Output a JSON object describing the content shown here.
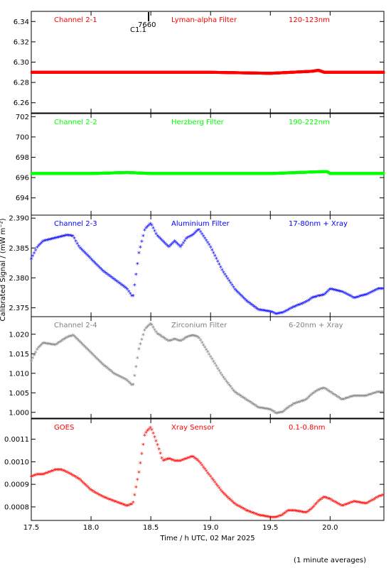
{
  "figure": {
    "xlabel": "Time / h UTC, 02 Mar 2025",
    "ylabel": "Calibrated Signal / (mW m⁻²)",
    "footnote": "(1 minute averages)",
    "event_label": "7660",
    "event_class": "C1.1"
  },
  "chart_data": [
    {
      "type": "scatter",
      "series": [
        {
          "name": "Channel 2-1",
          "color": "#ff0000",
          "points_x": [
            17.5,
            18.0,
            18.5,
            19.0,
            19.5,
            19.85,
            19.9,
            19.95,
            20.0,
            20.45
          ],
          "points_y": [
            6.29,
            6.29,
            6.29,
            6.29,
            6.289,
            6.291,
            6.292,
            6.29,
            6.29,
            6.29
          ]
        }
      ],
      "labels": [
        "Channel 2-1",
        "Lyman-alpha Filter",
        "120-123nm"
      ],
      "x": [
        17.5,
        20.45
      ],
      "ylim": [
        6.25,
        6.35
      ],
      "yticks": [
        6.26,
        6.28,
        6.3,
        6.32,
        6.34
      ],
      "yticklabels": [
        "6.26",
        "6.28",
        "6.30",
        "6.32",
        "6.34"
      ],
      "color": "#ff0000"
    },
    {
      "type": "scatter",
      "series": [
        {
          "name": "Channel 2-2",
          "color": "#00ff00",
          "points_x": [
            17.5,
            18.0,
            18.3,
            18.5,
            19.0,
            19.5,
            19.97,
            20.0,
            20.45
          ],
          "points_y": [
            696.4,
            696.4,
            696.5,
            696.4,
            696.4,
            696.4,
            696.6,
            696.4,
            696.4
          ]
        }
      ],
      "labels": [
        "Channel 2-2",
        "Herzberg Filter",
        "190-222nm"
      ],
      "x": [
        17.5,
        20.45
      ],
      "ylim": [
        692.3,
        702.3
      ],
      "yticks": [
        694,
        696,
        698,
        700,
        702
      ],
      "yticklabels": [
        "694",
        "696",
        "698",
        "700",
        "702"
      ],
      "color": "#00ff00"
    },
    {
      "type": "scatter",
      "series": [
        {
          "name": "Channel 2-3",
          "color": "#0000ff",
          "points_x": [
            17.5,
            17.55,
            17.6,
            17.7,
            17.8,
            17.85,
            17.9,
            18.0,
            18.1,
            18.2,
            18.3,
            18.35,
            18.4,
            18.45,
            18.5,
            18.55,
            18.6,
            18.65,
            18.7,
            18.75,
            18.8,
            18.85,
            18.9,
            19.0,
            19.1,
            19.2,
            19.3,
            19.4,
            19.5,
            19.55,
            19.6,
            19.65,
            19.7,
            19.8,
            19.85,
            19.9,
            19.95,
            20.0,
            20.1,
            20.2,
            20.3,
            20.4,
            20.45
          ],
          "points_y": [
            2.383,
            2.385,
            2.386,
            2.3865,
            2.387,
            2.3868,
            2.385,
            2.383,
            2.381,
            2.3795,
            2.378,
            2.3765,
            2.384,
            2.388,
            2.389,
            2.387,
            2.386,
            2.385,
            2.386,
            2.385,
            2.3865,
            2.387,
            2.388,
            2.385,
            2.381,
            2.378,
            2.376,
            2.3745,
            2.3742,
            2.3738,
            2.374,
            2.3745,
            2.375,
            2.3758,
            2.3765,
            2.3768,
            2.377,
            2.378,
            2.3775,
            2.3765,
            2.377,
            2.378,
            2.378
          ]
        }
      ],
      "labels": [
        "Channel 2-3",
        "Aluminium Filter",
        "17-80nm + Xray"
      ],
      "x": [
        17.5,
        20.45
      ],
      "ylim": [
        2.3735,
        2.3905
      ],
      "yticks": [
        2.375,
        2.38,
        2.385,
        2.39
      ],
      "yticklabels": [
        "2.375",
        "2.380",
        "2.385",
        "2.390"
      ],
      "color": "#0000ff"
    },
    {
      "type": "scatter",
      "series": [
        {
          "name": "Channel 2-4",
          "color": "#808080",
          "points_x": [
            17.5,
            17.55,
            17.6,
            17.7,
            17.8,
            17.85,
            17.9,
            18.0,
            18.1,
            18.2,
            18.3,
            18.35,
            18.4,
            18.45,
            18.5,
            18.55,
            18.6,
            18.65,
            18.7,
            18.75,
            18.8,
            18.85,
            18.9,
            19.0,
            19.1,
            19.2,
            19.3,
            19.4,
            19.5,
            19.55,
            19.6,
            19.65,
            19.7,
            19.8,
            19.85,
            19.9,
            19.95,
            20.0,
            20.1,
            20.2,
            20.3,
            20.4,
            20.45
          ],
          "points_y": [
            1.013,
            1.016,
            1.0175,
            1.017,
            1.019,
            1.0195,
            1.018,
            1.015,
            1.012,
            1.0095,
            1.008,
            1.0065,
            1.016,
            1.021,
            1.0225,
            1.02,
            1.019,
            1.018,
            1.0185,
            1.018,
            1.019,
            1.0195,
            1.019,
            1.014,
            1.009,
            1.005,
            1.003,
            1.001,
            1.0005,
            0.9995,
            0.9998,
            1.001,
            1.002,
            1.003,
            1.0045,
            1.0055,
            1.006,
            1.005,
            1.003,
            1.004,
            1.004,
            1.005,
            1.005
          ]
        }
      ],
      "labels": [
        "Channel 2-4",
        "Zirconium Filter",
        "6-20nm + Xray"
      ],
      "x": [
        17.5,
        20.45
      ],
      "ylim": [
        0.9985,
        1.0245
      ],
      "yticks": [
        1.0,
        1.005,
        1.01,
        1.015,
        1.02
      ],
      "yticklabels": [
        "1.000",
        "1.005",
        "1.010",
        "1.015",
        "1.020"
      ],
      "color": "#808080"
    },
    {
      "type": "scatter",
      "series": [
        {
          "name": "GOES",
          "color": "#ff0000",
          "points_x": [
            17.5,
            17.55,
            17.6,
            17.7,
            17.75,
            17.8,
            17.9,
            18.0,
            18.1,
            18.2,
            18.3,
            18.35,
            18.4,
            18.45,
            18.5,
            18.55,
            18.6,
            18.65,
            18.7,
            18.75,
            18.8,
            18.85,
            18.9,
            19.0,
            19.1,
            19.2,
            19.3,
            19.4,
            19.5,
            19.55,
            19.6,
            19.65,
            19.7,
            19.8,
            19.85,
            19.9,
            19.95,
            20.0,
            20.1,
            20.2,
            20.3,
            20.4,
            20.45
          ],
          "points_y": [
            0.00093,
            0.00094,
            0.00094,
            0.00096,
            0.00096,
            0.00095,
            0.00092,
            0.00087,
            0.00084,
            0.00082,
            0.0008,
            0.00081,
            0.00095,
            0.00112,
            0.00115,
            0.00108,
            0.001,
            0.00101,
            0.001,
            0.001,
            0.00101,
            0.00102,
            0.001,
            0.00093,
            0.00086,
            0.00081,
            0.00078,
            0.00076,
            0.00075,
            0.00075,
            0.00076,
            0.00078,
            0.00078,
            0.00077,
            0.00079,
            0.00082,
            0.00084,
            0.00083,
            0.0008,
            0.00082,
            0.00081,
            0.00084,
            0.00085
          ]
        }
      ],
      "labels": [
        "GOES",
        "Xray Sensor",
        "0.1-0.8nm"
      ],
      "x": [
        17.5,
        20.45
      ],
      "ylim": [
        0.00074,
        0.00119
      ],
      "yticks": [
        0.0008,
        0.0009,
        0.001,
        0.0011
      ],
      "yticklabels": [
        "0.0008",
        "0.0009",
        "0.0010",
        "0.0011"
      ],
      "color": "#ff0000"
    }
  ],
  "xaxis": {
    "range": [
      17.5,
      20.45
    ],
    "ticks": [
      17.5,
      18.0,
      18.5,
      19.0,
      19.5,
      20.0
    ],
    "ticklabels": [
      "17.5",
      "18.0",
      "18.5",
      "19.0",
      "19.5",
      "20.0"
    ]
  }
}
